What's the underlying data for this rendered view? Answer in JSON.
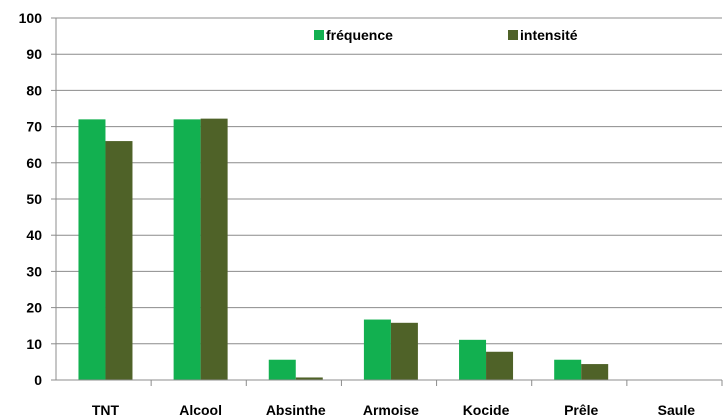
{
  "chart_data": {
    "type": "bar",
    "categories": [
      "TNT",
      "Alcool",
      "Absinthe",
      "Armoise",
      "Kocide",
      "Prêle",
      "Saule"
    ],
    "series": [
      {
        "name": "fréquence",
        "color": "#12B050",
        "values": [
          72,
          72,
          5.6,
          16.7,
          11.1,
          5.6,
          0
        ]
      },
      {
        "name": "intensité",
        "color": "#4F6228",
        "values": [
          66,
          72.2,
          0.7,
          15.8,
          7.8,
          4.4,
          0
        ]
      }
    ],
    "ylim": [
      0,
      100
    ],
    "yticks": [
      0,
      10,
      20,
      30,
      40,
      50,
      60,
      70,
      80,
      90,
      100
    ],
    "grid": true,
    "legend_position": "top",
    "title": "",
    "xlabel": "",
    "ylabel": ""
  }
}
